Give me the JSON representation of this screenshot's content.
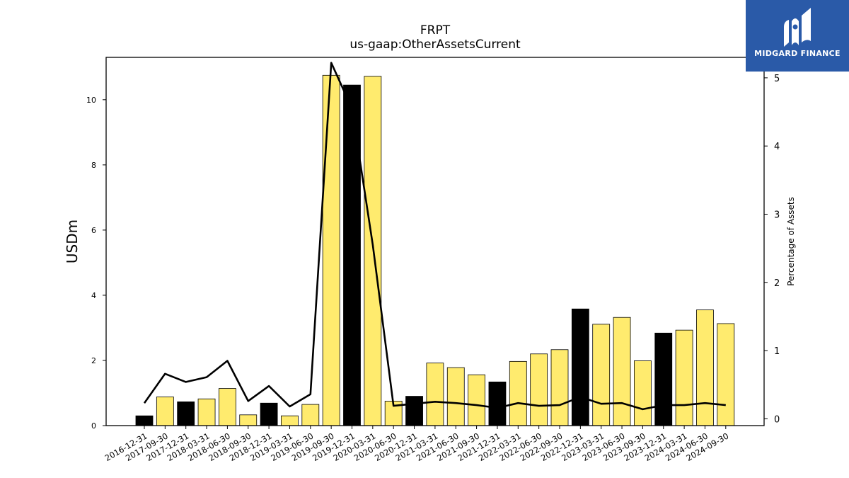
{
  "chart_data": {
    "type": "bar",
    "title": "FRPT",
    "subtitle": "us-gaap:OtherAssetsCurrent",
    "ylabel": "USDm",
    "y2label": "Percentage of Assets",
    "ylim": [
      0,
      11.3
    ],
    "y2lim": [
      -0.1,
      5.3
    ],
    "yticks": [
      0,
      2,
      4,
      6,
      8,
      10
    ],
    "y2ticks": [
      0,
      1,
      2,
      3,
      4,
      5
    ],
    "categories": [
      "2016-12-31",
      "2017-09-30",
      "2017-12-31",
      "2018-03-31",
      "2018-06-30",
      "2018-09-30",
      "2018-12-31",
      "2019-03-31",
      "2019-06-30",
      "2019-09-30",
      "2019-12-31",
      "2020-03-31",
      "2020-06-30",
      "2020-12-31",
      "2021-03-31",
      "2021-06-30",
      "2021-09-30",
      "2021-12-31",
      "2022-03-31",
      "2022-06-30",
      "2022-09-30",
      "2022-12-31",
      "2023-03-31",
      "2023-06-30",
      "2023-09-30",
      "2023-12-31",
      "2024-03-31",
      "2024-06-30",
      "2024-09-30"
    ],
    "series": [
      {
        "type": "bar",
        "values": [
          0.3,
          0.88,
          0.73,
          0.82,
          1.14,
          0.33,
          0.69,
          0.3,
          0.65,
          10.75,
          10.45,
          10.72,
          0.75,
          0.9,
          1.92,
          1.78,
          1.56,
          1.34,
          1.97,
          2.2,
          2.33,
          3.58,
          3.11,
          3.32,
          1.99,
          2.84,
          2.93,
          3.55,
          3.13
        ],
        "colors": [
          "#000000",
          "#ffeb6e",
          "#000000",
          "#ffeb6e",
          "#ffeb6e",
          "#ffeb6e",
          "#000000",
          "#ffeb6e",
          "#ffeb6e",
          "#ffeb6e",
          "#000000",
          "#ffeb6e",
          "#ffeb6e",
          "#000000",
          "#ffeb6e",
          "#ffeb6e",
          "#ffeb6e",
          "#000000",
          "#ffeb6e",
          "#ffeb6e",
          "#ffeb6e",
          "#000000",
          "#ffeb6e",
          "#ffeb6e",
          "#ffeb6e",
          "#000000",
          "#ffeb6e",
          "#ffeb6e",
          "#ffeb6e"
        ]
      },
      {
        "type": "line",
        "axis": "right",
        "color": "#000000",
        "values": [
          0.23,
          0.66,
          0.54,
          0.61,
          0.85,
          0.26,
          0.48,
          0.18,
          0.36,
          5.22,
          4.55,
          2.55,
          0.19,
          0.22,
          0.25,
          0.23,
          0.2,
          0.16,
          0.23,
          0.19,
          0.2,
          0.32,
          0.22,
          0.23,
          0.14,
          0.2,
          0.2,
          0.23,
          0.2
        ]
      }
    ],
    "grid": false,
    "legend": "none"
  },
  "logo": {
    "text": "MIDGARD FINANCE",
    "color": "#2a5aa8"
  }
}
